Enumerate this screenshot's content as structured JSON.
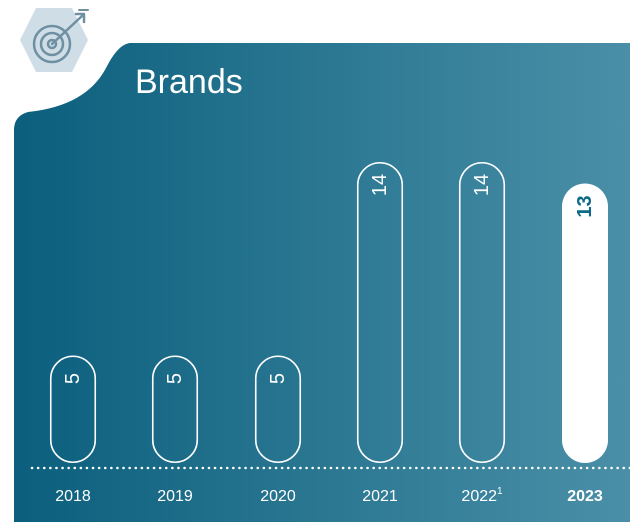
{
  "colors": {
    "gradient_start": "#0b5f7d",
    "gradient_end": "#4a8fa7",
    "icon_badge": "#cfdde6",
    "icon_stroke": "#6f8fa2",
    "bar_outline": "#ffffff",
    "highlight_bar": "#ffffff",
    "highlight_label": "#0d6a86",
    "text": "#ffffff"
  },
  "header": {
    "icon": "target-with-arrow-icon",
    "title": "Brands"
  },
  "chart_data": {
    "type": "bar",
    "title": "Brands",
    "xlabel": "",
    "ylabel": "",
    "categories": [
      "2018",
      "2019",
      "2020",
      "2021",
      "2022",
      "2023"
    ],
    "category_footnotes": [
      "",
      "",
      "",
      "",
      "1",
      ""
    ],
    "values": [
      5,
      5,
      5,
      14,
      14,
      13
    ],
    "value_labels": [
      "5",
      "5",
      "5",
      "14",
      "14",
      "13"
    ],
    "highlighted_category": "2023",
    "ylim": [
      0,
      14
    ],
    "grid": false,
    "baseline": "dotted",
    "orientation": "vertical"
  }
}
